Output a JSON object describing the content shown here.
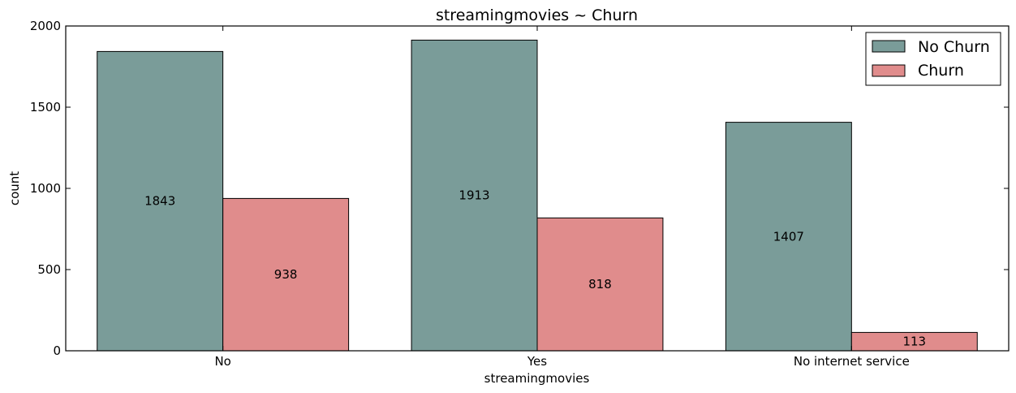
{
  "chart_data": {
    "type": "bar",
    "title": "streamingmovies ~ Churn",
    "xlabel": "streamingmovies",
    "ylabel": "count",
    "categories": [
      "No",
      "Yes",
      "No internet service"
    ],
    "series": [
      {
        "name": "No Churn",
        "values": [
          1843,
          1913,
          1407
        ],
        "color": "#7a9c99"
      },
      {
        "name": "Churn",
        "values": [
          938,
          818,
          113
        ],
        "color": "#e08c8c"
      }
    ],
    "ylim": [
      0,
      2000
    ],
    "yticks": [
      0,
      500,
      1000,
      1500,
      2000
    ],
    "grid": false,
    "legend_position": "top-right",
    "data_label_position": "middle"
  }
}
